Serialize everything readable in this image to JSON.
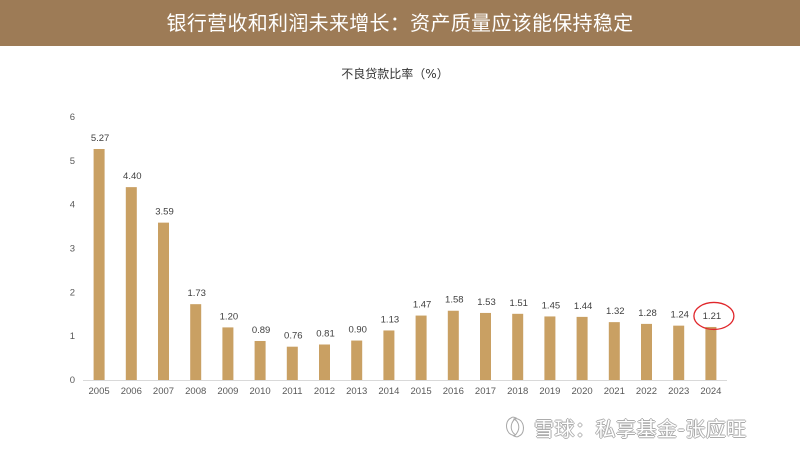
{
  "header": {
    "title": "银行营收和利润未来增长：资产质量应该能保持稳定"
  },
  "colors": {
    "header_bg": "#9D7B56",
    "bar": "#C9A063",
    "annotation": "#E0262B",
    "axis_line": "#D9D9D9",
    "tick_text": "#595959",
    "label_text": "#404040"
  },
  "chart_data": {
    "type": "bar",
    "title": "不良贷款比率（%）",
    "xlabel": "",
    "ylabel": "",
    "categories": [
      "2005",
      "2006",
      "2007",
      "2008",
      "2009",
      "2010",
      "2011",
      "2012",
      "2013",
      "2014",
      "2015",
      "2016",
      "2017",
      "2018",
      "2019",
      "2020",
      "2021",
      "2022",
      "2023",
      "2024"
    ],
    "values": [
      5.27,
      4.4,
      3.59,
      1.73,
      1.2,
      0.89,
      0.76,
      0.81,
      0.9,
      1.13,
      1.47,
      1.58,
      1.53,
      1.51,
      1.45,
      1.44,
      1.32,
      1.28,
      1.24,
      1.21
    ],
    "ylim": [
      0,
      6
    ],
    "yticks": [
      0,
      1,
      2,
      3,
      4,
      5,
      6
    ],
    "grid": false,
    "legend": "none",
    "annotation": {
      "type": "circle",
      "target": "2024"
    }
  },
  "watermark": {
    "text": "雪球：私享基金-张应旺",
    "logo": "xueqiu-logo-icon"
  }
}
